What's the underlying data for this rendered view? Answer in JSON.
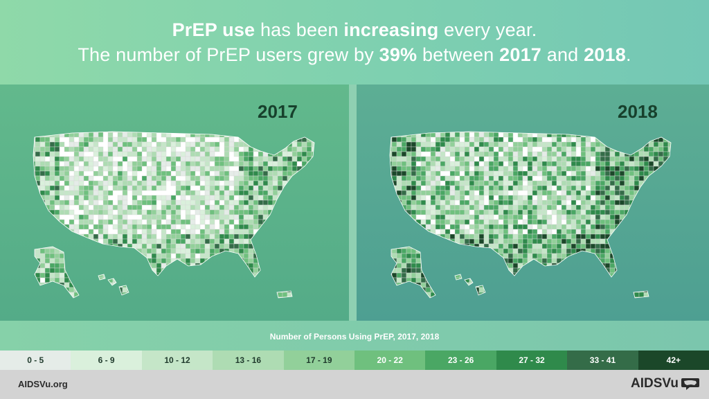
{
  "header": {
    "line1": [
      {
        "text": "PrEP use",
        "bold": true
      },
      {
        "text": " has been ",
        "bold": false
      },
      {
        "text": "increasing",
        "bold": true
      },
      {
        "text": " every year.",
        "bold": false
      }
    ],
    "line2": [
      {
        "text": "The number of PrEP users grew by ",
        "bold": false
      },
      {
        "text": "39%",
        "bold": true
      },
      {
        "text": " between ",
        "bold": false
      },
      {
        "text": "2017",
        "bold": true
      },
      {
        "text": " and ",
        "bold": false
      },
      {
        "text": "2018",
        "bold": true
      },
      {
        "text": ".",
        "bold": false
      }
    ]
  },
  "maps": [
    {
      "year": "2017",
      "intensity": 0.35
    },
    {
      "year": "2018",
      "intensity": 0.7
    }
  ],
  "legend": {
    "title": "Number of Persons Using PrEP, 2017, 2018",
    "bins": [
      {
        "label": "0 - 5",
        "color": "#e5ece8",
        "text_color": "#1f3a2c"
      },
      {
        "label": "6 - 9",
        "color": "#daf0dc",
        "text_color": "#1f3a2c"
      },
      {
        "label": "10 - 12",
        "color": "#c5e6c8",
        "text_color": "#1f3a2c"
      },
      {
        "label": "13 - 16",
        "color": "#aedcb3",
        "text_color": "#1f3a2c"
      },
      {
        "label": "17 - 19",
        "color": "#92d09a",
        "text_color": "#1f3a2c"
      },
      {
        "label": "20 - 22",
        "color": "#6fc07e",
        "text_color": "#ffffff"
      },
      {
        "label": "23 - 26",
        "color": "#4aa764",
        "text_color": "#ffffff"
      },
      {
        "label": "27 - 32",
        "color": "#2f8a4b",
        "text_color": "#ffffff"
      },
      {
        "label": "33 - 41",
        "color": "#346c48",
        "text_color": "#ffffff"
      },
      {
        "label": "42+",
        "color": "#1b4729",
        "text_color": "#ffffff"
      }
    ]
  },
  "footer": {
    "url": "AIDSVu.org",
    "logo_text": "AIDSVu"
  }
}
